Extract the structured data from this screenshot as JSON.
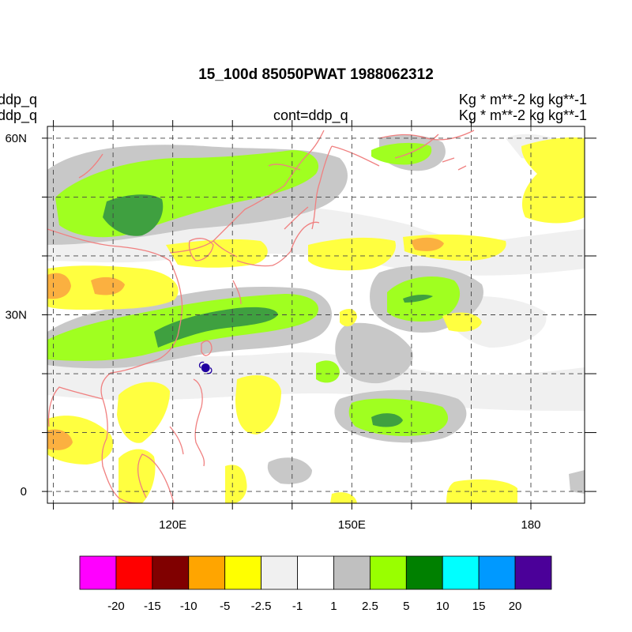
{
  "header": {
    "title": "15_100d 85050PWAT  1988062312",
    "left_line1": "ddp_q",
    "left_line2": "ddp_q",
    "center": "cont=ddp_q",
    "right_line1": "Kg  * m**-2 kg kg**-1",
    "right_line2": "Kg  * m**-2 kg kg**-1"
  },
  "axes": {
    "lat_labels": [
      "60N",
      "30N",
      "0"
    ],
    "lon_labels": [
      "120E",
      "150E",
      "180"
    ],
    "lat_range": [
      -2,
      62
    ],
    "lon_range": [
      99,
      189
    ],
    "grid": "dashed",
    "grid_lat_step": 10,
    "grid_lon_step": 10
  },
  "colorbar": {
    "colors": [
      "#ff00ff",
      "#ff0000",
      "#800000",
      "#ffa500",
      "#ffff00",
      "#f0f0f0",
      "#ffffff",
      "#c0c0c0",
      "#99ff00",
      "#008000",
      "#00ffff",
      "#0099ff",
      "#4b0099"
    ],
    "labels": [
      "-20",
      "-15",
      "-10",
      "-5",
      "-2.5",
      "-1",
      "1",
      "2.5",
      "5",
      "10",
      "15",
      "20"
    ]
  },
  "colors": {
    "coastline": "#f08080",
    "neg_light": "#f0f0f0",
    "neg_yellow": "#ffff40",
    "neg_orange": "#fbb040",
    "pos_gray": "#c8c8c8",
    "pos_lime": "#a0ff20",
    "pos_green": "#3fa040",
    "typhoon_marker": "#2000a0"
  },
  "typhoon_marker": {
    "lat": 21,
    "lon": 125.5,
    "icon": "typhoon-symbol-icon"
  }
}
